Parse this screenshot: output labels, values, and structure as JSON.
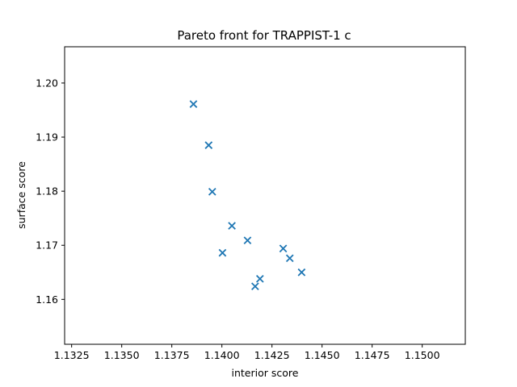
{
  "chart_data": {
    "type": "scatter",
    "title": "Pareto front for TRAPPIST-1 c",
    "xlabel": "interior score",
    "ylabel": "surface score",
    "xlim": [
      1.13215,
      1.15215
    ],
    "ylim": [
      1.1517,
      1.2067
    ],
    "xticks": [
      {
        "value": 1.1325,
        "label": "1.1325"
      },
      {
        "value": 1.135,
        "label": "1.1350"
      },
      {
        "value": 1.1375,
        "label": "1.1375"
      },
      {
        "value": 1.14,
        "label": "1.1400"
      },
      {
        "value": 1.1425,
        "label": "1.1425"
      },
      {
        "value": 1.145,
        "label": "1.1450"
      },
      {
        "value": 1.1475,
        "label": "1.1475"
      },
      {
        "value": 1.15,
        "label": "1.1500"
      }
    ],
    "yticks": [
      {
        "value": 1.16,
        "label": "1.16"
      },
      {
        "value": 1.17,
        "label": "1.17"
      },
      {
        "value": 1.18,
        "label": "1.18"
      },
      {
        "value": 1.19,
        "label": "1.19"
      },
      {
        "value": 1.2,
        "label": "1.20"
      }
    ],
    "grid": false,
    "marker": "x",
    "color": "#1f77b4",
    "series": [
      {
        "points": [
          {
            "x": 1.13858,
            "y": 1.1961
          },
          {
            "x": 1.13934,
            "y": 1.1885
          },
          {
            "x": 1.13952,
            "y": 1.1799
          },
          {
            "x": 1.1405,
            "y": 1.1736
          },
          {
            "x": 1.14003,
            "y": 1.1686
          },
          {
            "x": 1.14128,
            "y": 1.1709
          },
          {
            "x": 1.14306,
            "y": 1.1694
          },
          {
            "x": 1.14339,
            "y": 1.1676
          },
          {
            "x": 1.14398,
            "y": 1.165
          },
          {
            "x": 1.1419,
            "y": 1.1638
          },
          {
            "x": 1.14166,
            "y": 1.1624
          }
        ]
      }
    ]
  }
}
